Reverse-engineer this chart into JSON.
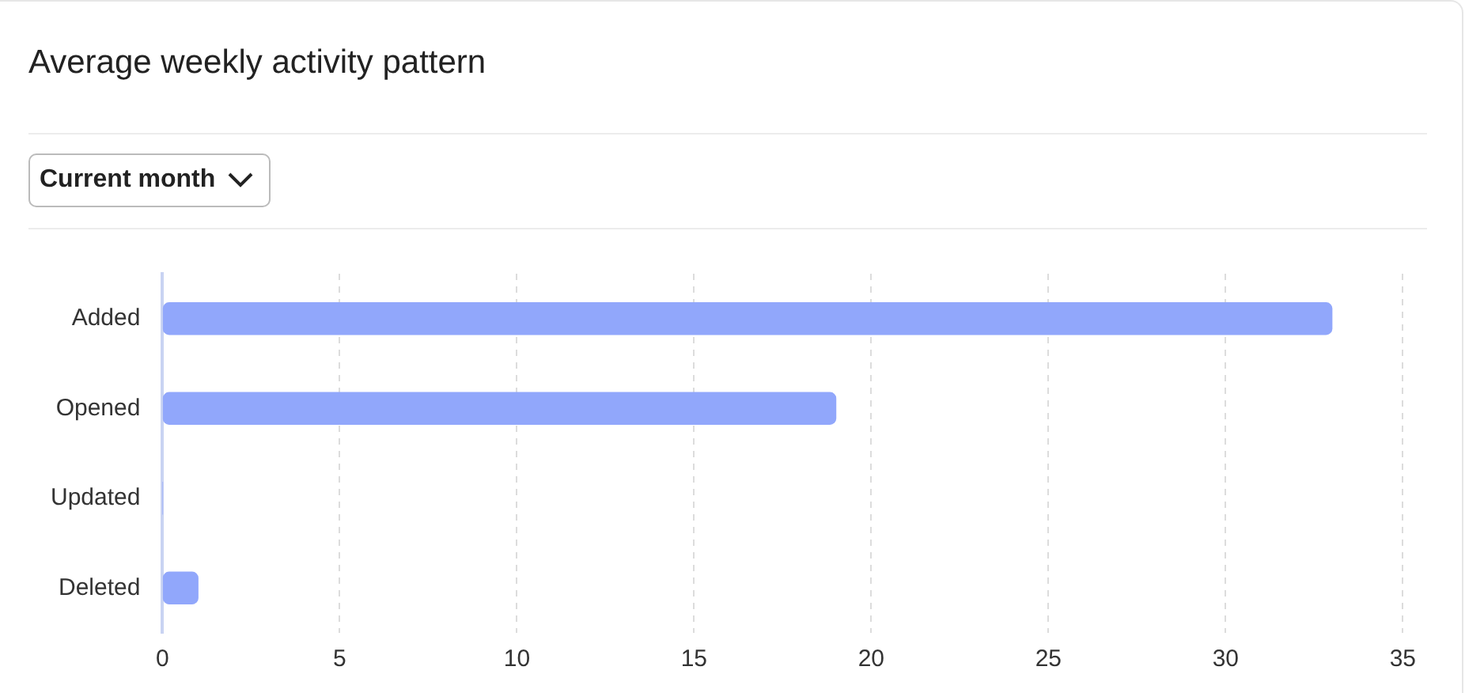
{
  "chart_data": {
    "type": "bar",
    "orientation": "horizontal",
    "title": "Average weekly activity pattern",
    "annotations": [
      "Current month"
    ],
    "categories": [
      "Added",
      "Opened",
      "Updated",
      "Deleted"
    ],
    "values": [
      33,
      19,
      0,
      1
    ],
    "color": "#91a7fb",
    "xlim": [
      0,
      35
    ],
    "xticks": [
      0,
      5,
      10,
      15,
      20,
      25,
      30,
      35
    ],
    "grid": "x",
    "legend": false
  }
}
